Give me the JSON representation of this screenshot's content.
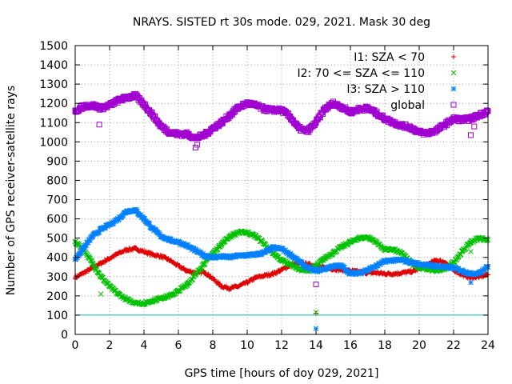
{
  "chart_data": {
    "type": "scatter",
    "title": "NRAYS. SISTED rt 30s mode. 029, 2021. Mask 30 deg",
    "xlabel": "GPS time [hours of doy 029, 2021]",
    "ylabel": "Number of GPS receiver-satellite rays",
    "xlim": [
      0,
      24
    ],
    "ylim": [
      0,
      1500
    ],
    "xticks": [
      0,
      2,
      4,
      6,
      8,
      10,
      12,
      14,
      16,
      18,
      20,
      22,
      24
    ],
    "yticks": [
      0,
      100,
      200,
      300,
      400,
      500,
      600,
      700,
      800,
      900,
      1000,
      1100,
      1200,
      1300,
      1400,
      1500
    ],
    "grid": true,
    "legend_position": "top-right",
    "reference_line": {
      "y": 100,
      "color": "#00c0c0"
    },
    "series": [
      {
        "name": "I1: SZA < 70",
        "color": "#e00000",
        "marker": "plus",
        "x": [
          0,
          0.5,
          1,
          1.5,
          2,
          2.5,
          3,
          3.5,
          4,
          4.5,
          5,
          5.5,
          6,
          6.5,
          7,
          7.5,
          8,
          8.5,
          9,
          9.5,
          10,
          10.5,
          11,
          11.5,
          12,
          12.5,
          13,
          13.5,
          14,
          14.5,
          15,
          15.5,
          16,
          16.5,
          17,
          17.5,
          18,
          18.5,
          19,
          19.5,
          20,
          20.5,
          21,
          21.5,
          22,
          22.5,
          23,
          23.5,
          24
        ],
        "y": [
          295,
          320,
          345,
          370,
          395,
          420,
          440,
          445,
          430,
          415,
          405,
          385,
          355,
          330,
          320,
          325,
          290,
          250,
          240,
          250,
          270,
          295,
          305,
          315,
          335,
          360,
          370,
          365,
          355,
          345,
          340,
          335,
          330,
          325,
          320,
          320,
          315,
          315,
          320,
          325,
          340,
          365,
          385,
          375,
          335,
          310,
          295,
          300,
          310
        ]
      },
      {
        "name": "I2: 70 <= SZA <= 110",
        "color": "#00c000",
        "marker": "x",
        "x": [
          0,
          0.5,
          1,
          1.5,
          2,
          2.5,
          3,
          3.5,
          4,
          4.5,
          5,
          5.5,
          6,
          6.5,
          7,
          7.5,
          8,
          8.5,
          9,
          9.5,
          10,
          10.5,
          11,
          11.5,
          12,
          12.5,
          13,
          13.5,
          14,
          14.5,
          15,
          15.5,
          16,
          16.5,
          17,
          17.5,
          18,
          18.5,
          19,
          19.5,
          20,
          20.5,
          21,
          21.5,
          22,
          22.5,
          23,
          23.5,
          24
        ],
        "y": [
          480,
          440,
          370,
          300,
          250,
          210,
          180,
          165,
          160,
          175,
          190,
          200,
          225,
          260,
          310,
          370,
          420,
          470,
          510,
          530,
          530,
          510,
          470,
          420,
          385,
          365,
          340,
          330,
          355,
          395,
          425,
          455,
          480,
          500,
          505,
          480,
          440,
          440,
          420,
          375,
          345,
          340,
          330,
          340,
          375,
          430,
          480,
          500,
          490
        ]
      },
      {
        "name": "I3: SZA > 110",
        "color": "#0080ff",
        "marker": "star",
        "x": [
          0,
          0.5,
          1,
          1.5,
          2,
          2.5,
          3,
          3.5,
          4,
          4.5,
          5,
          5.5,
          6,
          6.5,
          7,
          7.5,
          8,
          8.5,
          9,
          9.5,
          10,
          10.5,
          11,
          11.5,
          12,
          12.5,
          13,
          13.5,
          14,
          14.5,
          15,
          15.5,
          16,
          16.5,
          17,
          17.5,
          18,
          18.5,
          19,
          19.5,
          20,
          20.5,
          21,
          21.5,
          22,
          22.5,
          23,
          23.5,
          24
        ],
        "y": [
          390,
          450,
          510,
          545,
          570,
          600,
          640,
          645,
          600,
          550,
          510,
          490,
          480,
          460,
          435,
          410,
          400,
          405,
          400,
          410,
          410,
          415,
          425,
          450,
          445,
          415,
          380,
          345,
          330,
          340,
          355,
          355,
          315,
          320,
          335,
          355,
          380,
          385,
          385,
          375,
          365,
          360,
          355,
          350,
          345,
          330,
          315,
          320,
          350
        ]
      },
      {
        "name": "global",
        "color": "#a000d0",
        "marker": "square",
        "x": [
          0,
          0.5,
          1,
          1.5,
          2,
          2.5,
          3,
          3.5,
          4,
          4.5,
          5,
          5.5,
          6,
          6.5,
          7,
          7.5,
          8,
          8.5,
          9,
          9.5,
          10,
          10.5,
          11,
          11.5,
          12,
          12.5,
          13,
          13.5,
          14,
          14.5,
          15,
          15.5,
          16,
          16.5,
          17,
          17.5,
          18,
          18.5,
          19,
          19.5,
          20,
          20.5,
          21,
          21.5,
          22,
          22.5,
          23,
          23.5,
          24
        ],
        "y": [
          1160,
          1185,
          1190,
          1175,
          1190,
          1215,
          1230,
          1240,
          1195,
          1140,
          1080,
          1050,
          1040,
          1040,
          1020,
          1035,
          1070,
          1100,
          1140,
          1180,
          1200,
          1190,
          1170,
          1165,
          1165,
          1130,
          1070,
          1055,
          1100,
          1170,
          1200,
          1180,
          1155,
          1170,
          1175,
          1150,
          1120,
          1100,
          1085,
          1075,
          1050,
          1045,
          1060,
          1090,
          1120,
          1115,
          1120,
          1140,
          1160
        ]
      }
    ],
    "outliers": [
      {
        "series": "I1: SZA < 70",
        "x": [
          14
        ],
        "y": [
          110
        ]
      },
      {
        "series": "I2: 70 <= SZA <= 110",
        "x": [
          1.5,
          14,
          23
        ],
        "y": [
          210,
          115,
          430
        ]
      },
      {
        "series": "I3: SZA > 110",
        "x": [
          14,
          23
        ],
        "y": [
          30,
          270
        ]
      },
      {
        "series": "global",
        "x": [
          1.4,
          7,
          7.1,
          14,
          23,
          23.2
        ],
        "y": [
          1090,
          970,
          985,
          260,
          1035,
          1080
        ]
      }
    ]
  }
}
